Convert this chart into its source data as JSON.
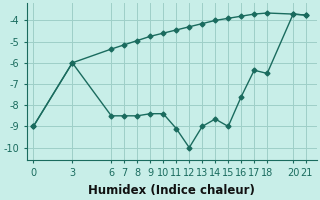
{
  "xlabel": "Humidex (Indice chaleur)",
  "line_color": "#1a6b5e",
  "bg_color": "#c8eee8",
  "grid_color": "#9ecfc7",
  "ylim": [
    -10.6,
    -3.2
  ],
  "xlim": [
    -0.5,
    21.8
  ],
  "yticks": [
    -10,
    -9,
    -8,
    -7,
    -6,
    -5,
    -4
  ],
  "xticks": [
    0,
    3,
    6,
    7,
    8,
    9,
    10,
    11,
    12,
    13,
    14,
    15,
    16,
    17,
    18,
    20,
    21
  ],
  "marker": "D",
  "markersize": 2.5,
  "linewidth": 1.0,
  "xlabel_fontsize": 8.5,
  "tick_fontsize": 7,
  "x_line1": [
    0,
    3,
    6,
    7,
    8,
    9,
    10,
    11,
    12,
    13,
    14,
    15,
    16,
    17,
    18,
    20,
    21
  ],
  "y_line1": [
    -9.0,
    -6.0,
    -8.5,
    -8.5,
    -8.5,
    -8.4,
    -8.4,
    -9.1,
    -10.0,
    -9.0,
    -8.65,
    -9.0,
    -7.6,
    -6.35,
    -6.5,
    -3.7,
    -3.75
  ],
  "x_line2": [
    0,
    3,
    6,
    7,
    8,
    9,
    10,
    11,
    12,
    13,
    14,
    15,
    16,
    17,
    18,
    20,
    21
  ],
  "y_line2": [
    -9.0,
    -6.0,
    -5.35,
    -5.15,
    -4.95,
    -4.75,
    -4.6,
    -4.45,
    -4.3,
    -4.15,
    -4.0,
    -3.9,
    -3.8,
    -3.7,
    -3.65,
    -3.7,
    -3.75
  ]
}
